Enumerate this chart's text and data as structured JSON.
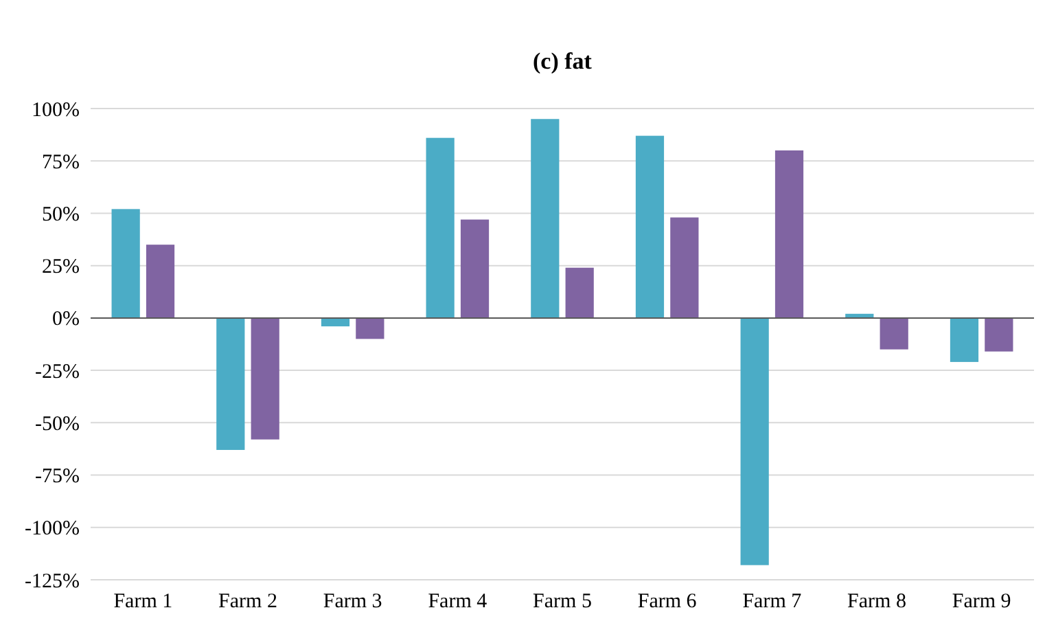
{
  "chart_data": {
    "type": "bar",
    "title": "(c) fat",
    "categories": [
      "Farm 1",
      "Farm 2",
      "Farm 3",
      "Farm 4",
      "Farm 5",
      "Farm 6",
      "Farm 7",
      "Farm 8",
      "Farm 9"
    ],
    "series": [
      {
        "color": "#4bacc6",
        "values": [
          52,
          -63,
          -4,
          86,
          95,
          87,
          -118,
          2,
          -21
        ]
      },
      {
        "color": "#8064a2",
        "values": [
          35,
          -58,
          -10,
          47,
          24,
          48,
          80,
          -15,
          -16
        ]
      }
    ],
    "ylim": [
      -125,
      100
    ],
    "yticks": [
      {
        "value": -125,
        "label": "-125%"
      },
      {
        "value": -100,
        "label": "-100%"
      },
      {
        "value": -75,
        "label": "-75%"
      },
      {
        "value": -50,
        "label": "-50%"
      },
      {
        "value": -25,
        "label": "-25%"
      },
      {
        "value": 0,
        "label": "0%"
      },
      {
        "value": 25,
        "label": "25%"
      },
      {
        "value": 50,
        "label": "50%"
      },
      {
        "value": 75,
        "label": "75%"
      },
      {
        "value": 100,
        "label": "100%"
      }
    ],
    "grid": "y"
  }
}
